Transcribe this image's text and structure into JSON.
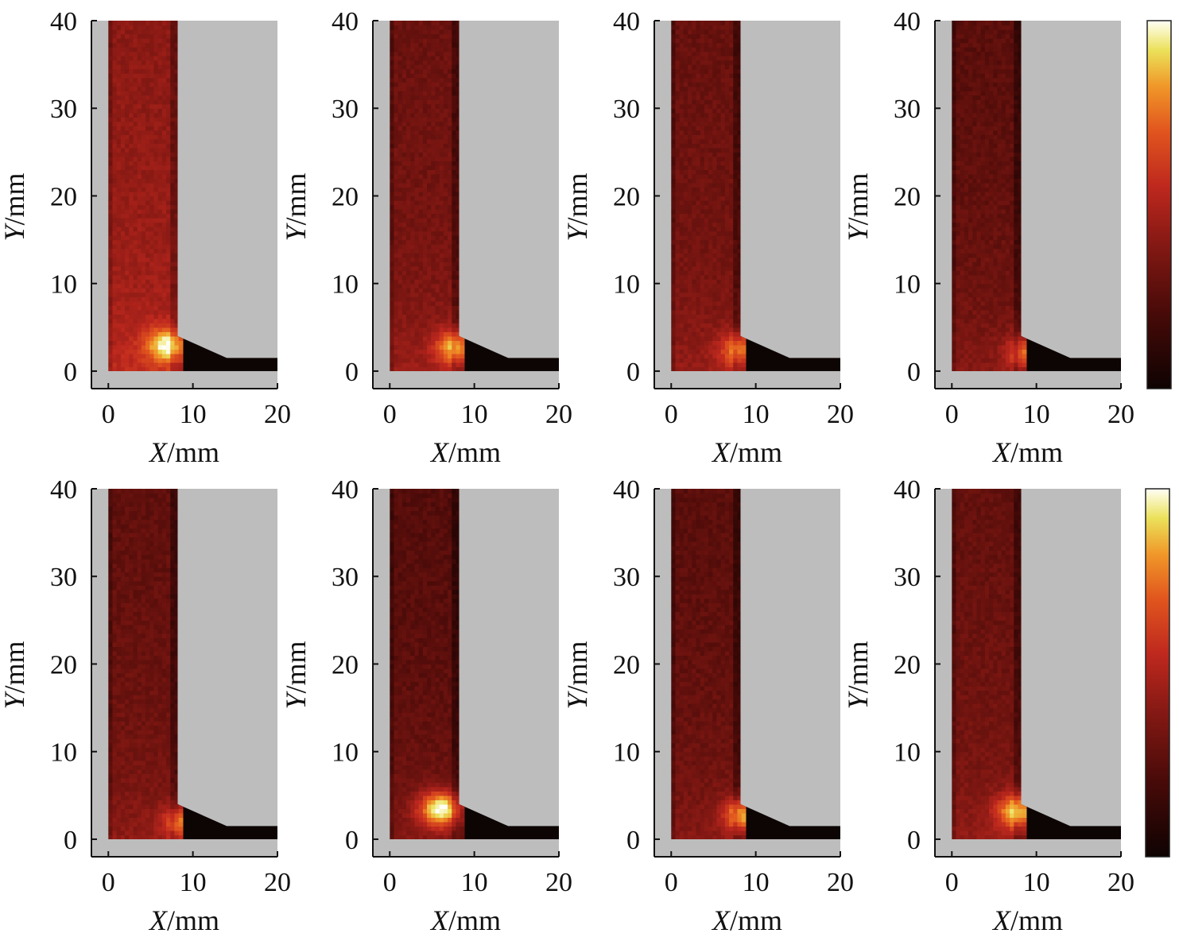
{
  "figure": {
    "x_axis_label": {
      "var": "X",
      "unit": "/mm"
    },
    "y_axis_label": {
      "var": "Y",
      "unit": "/mm"
    },
    "colormap_name": "hot",
    "colors": {
      "mask_gray": "#bdbdbd",
      "outside_black": "#0d0504",
      "axis_color": "#111111"
    }
  },
  "chart_data": [
    {
      "type": "heatmap",
      "panel": "top-1",
      "xlim": [
        -2,
        20
      ],
      "ylim": [
        -2,
        40
      ],
      "x_ticks": [
        "0",
        "10",
        "20"
      ],
      "y_ticks": [
        "0",
        "10",
        "20",
        "30",
        "40"
      ],
      "xlabel": "X/mm",
      "ylabel": "Y/mm",
      "channel_x_range": [
        0,
        8.2
      ],
      "step_corner": [
        8.2,
        4
      ],
      "slope_end": [
        14,
        1.5
      ],
      "hotspot": {
        "x": 7,
        "y": 3,
        "level": 0.95
      },
      "base_level": 0.45
    },
    {
      "type": "heatmap",
      "panel": "top-2",
      "xlim": [
        -2,
        20
      ],
      "ylim": [
        -2,
        40
      ],
      "x_ticks": [
        "0",
        "10",
        "20"
      ],
      "y_ticks": [
        "0",
        "10",
        "20",
        "30",
        "40"
      ],
      "xlabel": "X/mm",
      "ylabel": "Y/mm",
      "channel_x_range": [
        0,
        8.2
      ],
      "step_corner": [
        8.2,
        4
      ],
      "slope_end": [
        14,
        1.5
      ],
      "hotspot": {
        "x": 8,
        "y": 2.8,
        "level": 0.85
      },
      "base_level": 0.35
    },
    {
      "type": "heatmap",
      "panel": "top-3",
      "xlim": [
        -2,
        20
      ],
      "ylim": [
        -2,
        40
      ],
      "x_ticks": [
        "0",
        "10",
        "20"
      ],
      "y_ticks": [
        "0",
        "10",
        "20",
        "30",
        "40"
      ],
      "xlabel": "X/mm",
      "ylabel": "Y/mm",
      "channel_x_range": [
        0,
        8.2
      ],
      "step_corner": [
        8.2,
        4
      ],
      "slope_end": [
        14,
        1.5
      ],
      "hotspot": {
        "x": 8.5,
        "y": 2.5,
        "level": 0.8
      },
      "base_level": 0.34
    },
    {
      "type": "heatmap",
      "panel": "top-4",
      "xlim": [
        -2,
        20
      ],
      "ylim": [
        -2,
        40
      ],
      "x_ticks": [
        "0",
        "10",
        "20"
      ],
      "y_ticks": [
        "0",
        "10",
        "20",
        "30",
        "40"
      ],
      "xlabel": "X/mm",
      "ylabel": "Y/mm",
      "channel_x_range": [
        0,
        8.2
      ],
      "step_corner": [
        8.2,
        4
      ],
      "slope_end": [
        14,
        1.5
      ],
      "hotspot": {
        "x": 9.5,
        "y": 2.2,
        "level": 0.85
      },
      "base_level": 0.3
    },
    {
      "type": "heatmap",
      "panel": "bottom-1",
      "xlim": [
        -2,
        20
      ],
      "ylim": [
        -2,
        40
      ],
      "x_ticks": [
        "0",
        "10",
        "20"
      ],
      "y_ticks": [
        "0",
        "10",
        "20",
        "30",
        "40"
      ],
      "xlabel": "X/mm",
      "ylabel": "Y/mm",
      "channel_x_range": [
        0,
        8.2
      ],
      "step_corner": [
        8.2,
        4
      ],
      "slope_end": [
        14,
        1.5
      ],
      "hotspot": {
        "x": 9.5,
        "y": 2,
        "level": 0.9
      },
      "base_level": 0.32
    },
    {
      "type": "heatmap",
      "panel": "bottom-2",
      "xlim": [
        -2,
        20
      ],
      "ylim": [
        -2,
        40
      ],
      "x_ticks": [
        "0",
        "10",
        "20"
      ],
      "y_ticks": [
        "0",
        "10",
        "20",
        "30",
        "40"
      ],
      "xlabel": "X/mm",
      "ylabel": "Y/mm",
      "channel_x_range": [
        0,
        8.2
      ],
      "step_corner": [
        8.2,
        4
      ],
      "slope_end": [
        14,
        1.5
      ],
      "hotspot": {
        "x": 6,
        "y": 3.5,
        "level": 0.95
      },
      "base_level": 0.28
    },
    {
      "type": "heatmap",
      "panel": "bottom-3",
      "xlim": [
        -2,
        20
      ],
      "ylim": [
        -2,
        40
      ],
      "x_ticks": [
        "0",
        "10",
        "20"
      ],
      "y_ticks": [
        "0",
        "10",
        "20",
        "30",
        "40"
      ],
      "xlabel": "X/mm",
      "ylabel": "Y/mm",
      "channel_x_range": [
        0,
        8.2
      ],
      "step_corner": [
        8.2,
        4
      ],
      "slope_end": [
        14,
        1.5
      ],
      "hotspot": {
        "x": 9,
        "y": 2.8,
        "level": 0.92
      },
      "base_level": 0.3
    },
    {
      "type": "heatmap",
      "panel": "bottom-4",
      "xlim": [
        -2,
        20
      ],
      "ylim": [
        -2,
        40
      ],
      "x_ticks": [
        "0",
        "10",
        "20"
      ],
      "y_ticks": [
        "0",
        "10",
        "20",
        "30",
        "40"
      ],
      "xlabel": "X/mm",
      "ylabel": "Y/mm",
      "channel_x_range": [
        0,
        8.2
      ],
      "step_corner": [
        8.2,
        4
      ],
      "slope_end": [
        14,
        1.5
      ],
      "hotspot": {
        "x": 8,
        "y": 3.2,
        "level": 0.93
      },
      "base_level": 0.33
    }
  ]
}
